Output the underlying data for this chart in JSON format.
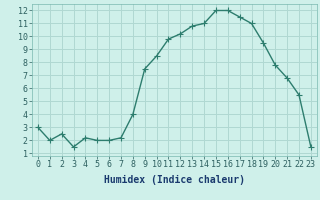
{
  "x": [
    0,
    1,
    2,
    3,
    4,
    5,
    6,
    7,
    8,
    9,
    10,
    11,
    12,
    13,
    14,
    15,
    16,
    17,
    18,
    19,
    20,
    21,
    22,
    23
  ],
  "y": [
    3.0,
    2.0,
    2.5,
    1.5,
    2.2,
    2.0,
    2.0,
    2.2,
    4.0,
    7.5,
    8.5,
    9.8,
    10.2,
    10.8,
    11.0,
    12.0,
    12.0,
    11.5,
    11.0,
    9.5,
    7.8,
    6.8,
    5.5,
    1.5
  ],
  "line_color": "#2d7d6e",
  "marker": "+",
  "markersize": 4,
  "linewidth": 1.0,
  "bg_color": "#cff0ea",
  "grid_color": "#b0d8d2",
  "xlabel": "Humidex (Indice chaleur)",
  "xlim": [
    -0.5,
    23.5
  ],
  "ylim": [
    0.8,
    12.5
  ],
  "xtick_labels": [
    "0",
    "1",
    "2",
    "3",
    "4",
    "5",
    "6",
    "7",
    "8",
    "9",
    "10",
    "11",
    "12",
    "13",
    "14",
    "15",
    "16",
    "17",
    "18",
    "19",
    "20",
    "21",
    "22",
    "23"
  ],
  "ytick_values": [
    1,
    2,
    3,
    4,
    5,
    6,
    7,
    8,
    9,
    10,
    11,
    12
  ],
  "xlabel_fontsize": 7,
  "tick_fontsize": 6
}
